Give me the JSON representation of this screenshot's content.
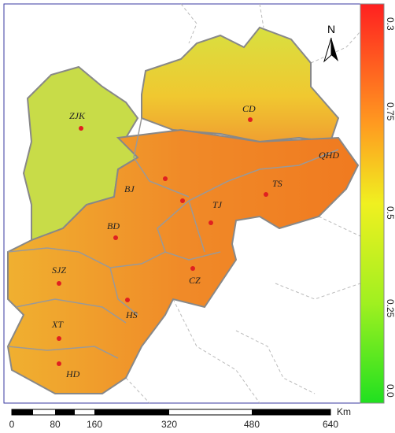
{
  "map": {
    "north": "N",
    "cities": [
      "ZJK",
      "CD",
      "QHD",
      "TS",
      "BJ",
      "TJ",
      "BD",
      "SJZ",
      "CZ",
      "HS",
      "XT",
      "HD"
    ],
    "colorbar_labels": [
      "0.3",
      "0.75",
      "0.5",
      "0.25",
      "0.0"
    ],
    "scale_bar_labels": [
      "0",
      "80",
      "160",
      "320",
      "480",
      "640"
    ],
    "scale_unit": "Km"
  }
}
